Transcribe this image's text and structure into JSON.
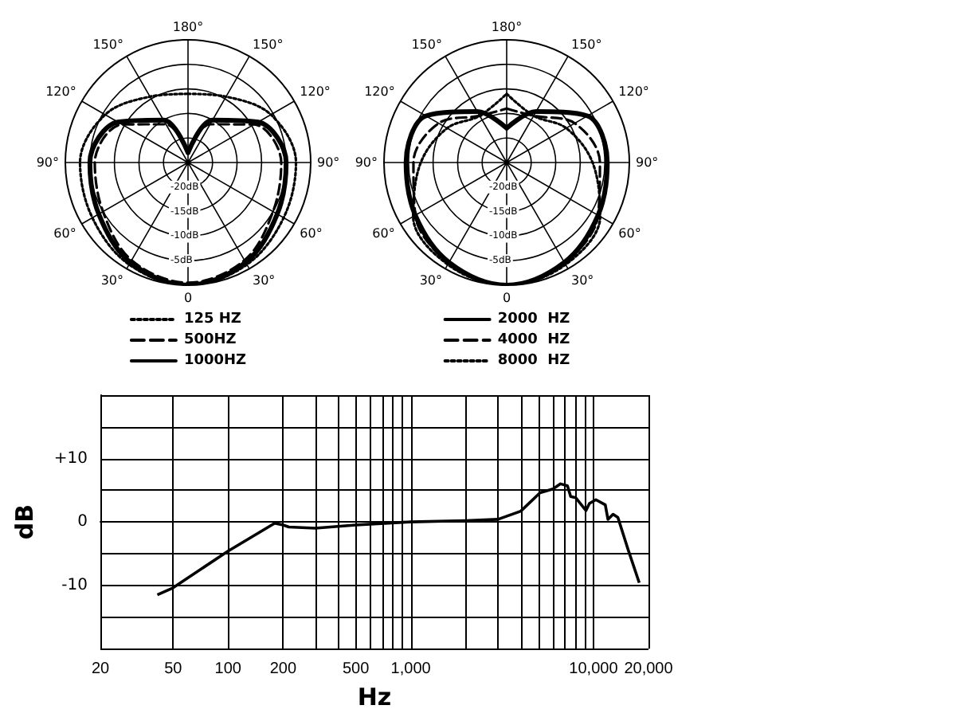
{
  "chart_data": [
    {
      "type": "radar",
      "categories": [
        "180°",
        "150°",
        "120°",
        "90°",
        "60°",
        "30°",
        "0",
        "30°",
        "60°",
        "90°",
        "120°",
        "150°"
      ],
      "ylim": [
        -25,
        0
      ],
      "yticks": [
        {
          "value": -20,
          "label": "-20dB"
        },
        {
          "value": -15,
          "label": "-15dB"
        },
        {
          "value": -10,
          "label": "-10dB"
        },
        {
          "value": -5,
          "label": "-5dB"
        }
      ],
      "grid": true,
      "legend": "bottom",
      "series": [
        {
          "name": "125 HZ",
          "color": "#000000",
          "line_style": "dotted",
          "values": [
            -11,
            -9.5,
            -5.5,
            -3,
            -2.5,
            -1,
            0,
            -1,
            -2.5,
            -3,
            -5.5,
            -9.5
          ]
        },
        {
          "name": "500HZ",
          "color": "#000000",
          "line_style": "dashed",
          "values": [
            -23,
            -16,
            -9.5,
            -6,
            -5,
            -2,
            -0.5,
            -2,
            -5,
            -6,
            -9.5,
            -16
          ]
        },
        {
          "name": "1000HZ",
          "color": "#000000",
          "line_style": "solid",
          "values": [
            -23,
            -15,
            -8.5,
            -5,
            -4,
            -1.5,
            0,
            -1.5,
            -4,
            -5,
            -8.5,
            -15
          ]
        }
      ]
    },
    {
      "type": "radar",
      "categories": [
        "180°",
        "150°",
        "120°",
        "90°",
        "60°",
        "30°",
        "0",
        "30°",
        "60°",
        "90°",
        "120°",
        "150°"
      ],
      "ylim": [
        -25,
        0
      ],
      "yticks": [
        {
          "value": -20,
          "label": "-20dB"
        },
        {
          "value": -15,
          "label": "-15dB"
        },
        {
          "value": -10,
          "label": "-10dB"
        },
        {
          "value": -5,
          "label": "-5dB"
        }
      ],
      "grid": true,
      "legend": "bottom",
      "series": [
        {
          "name": "2000  HZ",
          "color": "#000000",
          "line_style": "solid",
          "values": [
            -18,
            -13,
            -6,
            -4.5,
            -3.5,
            -1.5,
            0,
            -1.5,
            -3.5,
            -4.5,
            -6,
            -13
          ]
        },
        {
          "name": "4000  HZ",
          "color": "#000000",
          "line_style": "dashed",
          "values": [
            -14,
            -14,
            -9,
            -6,
            -3.5,
            -1.5,
            0,
            -1.5,
            -3.5,
            -6,
            -9,
            -14
          ]
        },
        {
          "name": "8000  HZ",
          "color": "#000000",
          "line_style": "dotted",
          "values": [
            -11,
            -14,
            -11,
            -7.5,
            -3,
            -1,
            0,
            -1,
            -3,
            -7.5,
            -11,
            -14
          ]
        }
      ]
    },
    {
      "type": "line",
      "xlabel": "Hz",
      "ylabel": "dB",
      "log": "x",
      "grid": true,
      "color": "#000000",
      "xlim": [
        20,
        20000
      ],
      "ylim": [
        -20,
        20
      ],
      "xticks": [
        20,
        50,
        100,
        200,
        {
          "value": 300,
          "label": null
        },
        {
          "value": 400,
          "label": null
        },
        500,
        {
          "value": 600,
          "label": null
        },
        {
          "value": 700,
          "label": null
        },
        {
          "value": 800,
          "label": null
        },
        {
          "value": 900,
          "label": null
        },
        {
          "value": 1000,
          "label": "1,000"
        },
        {
          "value": 2000,
          "label": null
        },
        {
          "value": 3000,
          "label": null
        },
        {
          "value": 4000,
          "label": null
        },
        {
          "value": 5000,
          "label": null
        },
        {
          "value": 6000,
          "label": null
        },
        {
          "value": 7000,
          "label": null
        },
        {
          "value": 8000,
          "label": null
        },
        {
          "value": 9000,
          "label": null
        },
        {
          "value": 10000,
          "label": "10,000"
        },
        {
          "value": 20000,
          "label": "20,000"
        }
      ],
      "yticks": [
        {
          "value": -20,
          "label": null
        },
        {
          "value": -15,
          "label": null
        },
        -10,
        {
          "value": -5,
          "label": null
        },
        0,
        {
          "value": 5,
          "label": null
        },
        {
          "value": 10,
          "label": "+10"
        },
        {
          "value": 15,
          "label": null
        },
        {
          "value": 20,
          "label": null
        }
      ],
      "x": [
        41,
        50,
        100,
        180,
        200,
        215,
        300,
        500,
        1000,
        2000,
        3000,
        4000,
        5100,
        6000,
        6600,
        7200,
        7500,
        8000,
        9100,
        9500,
        10300,
        11600,
        12000,
        12800,
        13600,
        15400,
        17800
      ],
      "values": [
        -11.5,
        -10.4,
        -4.6,
        -0.2,
        -0.5,
        -0.8,
        -1,
        -0.5,
        0,
        0.2,
        0.4,
        1.7,
        4.6,
        5.2,
        6,
        5.7,
        4,
        3.8,
        1.8,
        2.9,
        3.5,
        2.7,
        0.4,
        1.2,
        0.7,
        -4.2,
        -9.6
      ]
    }
  ]
}
